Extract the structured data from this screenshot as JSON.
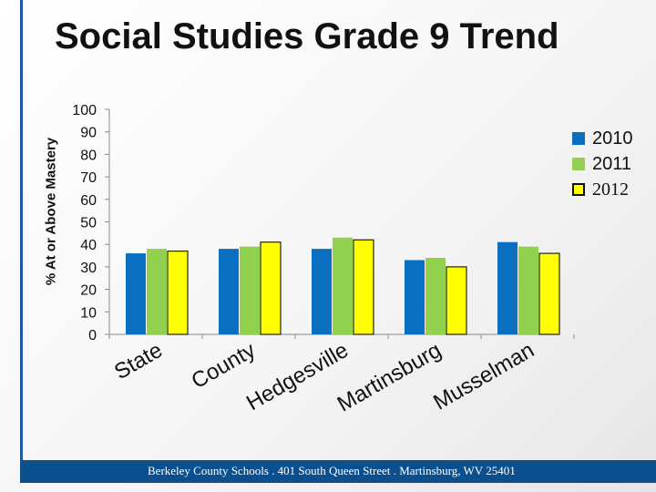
{
  "page": {
    "title": "Social Studies Grade 9 Trend",
    "footer": "Berkeley County Schools . 401 South Queen Street . Martinsburg, WV  25401"
  },
  "chart_data": {
    "type": "bar",
    "title": "",
    "ylabel": "% At or Above Mastery",
    "xlabel": "",
    "ylim": [
      0,
      100
    ],
    "yticks": [
      0,
      10,
      20,
      30,
      40,
      50,
      60,
      70,
      80,
      90,
      100
    ],
    "categories": [
      "State",
      "County",
      "Hedgesville",
      "Martinsburg",
      "Musselman"
    ],
    "series": [
      {
        "name": "2010",
        "color": "#0b6fc1",
        "values": [
          36,
          38,
          38,
          33,
          41
        ]
      },
      {
        "name": "2011",
        "color": "#92d050",
        "values": [
          38,
          39,
          43,
          34,
          39
        ]
      },
      {
        "name": "2012",
        "color": "#ffff00",
        "values": [
          37,
          41,
          42,
          30,
          36
        ]
      }
    ],
    "grid": false,
    "legend_position": "right"
  }
}
